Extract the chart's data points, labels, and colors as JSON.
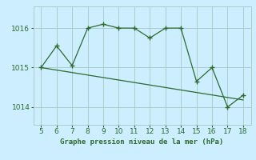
{
  "x": [
    5,
    6,
    7,
    8,
    9,
    10,
    11,
    12,
    13,
    14,
    15,
    16,
    17,
    18
  ],
  "y": [
    1015.0,
    1015.55,
    1015.05,
    1016.0,
    1016.1,
    1016.0,
    1016.0,
    1015.75,
    1016.0,
    1016.0,
    1014.65,
    1015.0,
    1014.0,
    1014.3
  ],
  "trend_x": [
    5,
    18
  ],
  "trend_y": [
    1015.0,
    1014.18
  ],
  "line_color": "#2d6a2d",
  "bg_color": "#cceeff",
  "grid_color": "#aacccc",
  "xlabel": "Graphe pression niveau de la mer (hPa)",
  "xlim": [
    4.5,
    18.5
  ],
  "ylim": [
    1013.55,
    1016.55
  ],
  "yticks": [
    1014,
    1015,
    1016
  ],
  "xticks": [
    5,
    6,
    7,
    8,
    9,
    10,
    11,
    12,
    13,
    14,
    15,
    16,
    17,
    18
  ]
}
